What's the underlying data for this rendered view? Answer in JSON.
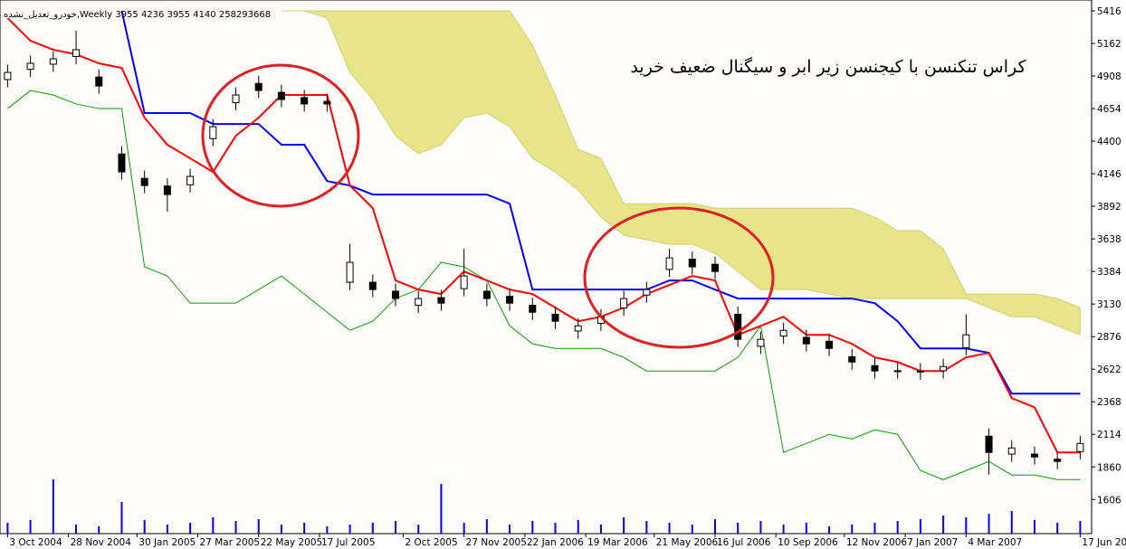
{
  "chart_data": {
    "type": "candlestick",
    "header": "خودرو_تعدیل_نشده,Weekly  3955 4236 3955 4140  258293668",
    "title": "کراس تنکنسن با کیجنسن زیر ابر و سیگنال ضعیف خرید",
    "x": [
      0,
      3,
      6,
      9,
      12,
      15,
      18,
      21,
      24,
      27,
      30,
      33,
      36,
      39,
      42,
      45,
      48,
      51,
      54,
      57,
      60,
      63,
      66,
      69,
      72,
      75,
      78,
      81,
      84,
      87,
      90,
      93,
      96,
      99,
      102,
      105,
      108,
      111,
      114,
      117,
      120,
      123,
      126,
      129,
      132,
      135,
      138,
      141
    ],
    "open": [
      4880,
      4960,
      5000,
      5060,
      4900,
      4300,
      4110,
      4050,
      4060,
      4420,
      4700,
      4850,
      4780,
      4740,
      4710,
      3300,
      3300,
      3230,
      3120,
      3180,
      3250,
      3230,
      3190,
      3120,
      3050,
      2920,
      2980,
      3100,
      3200,
      3400,
      3480,
      3440,
      3050,
      2800,
      2880,
      2870,
      2840,
      2720,
      2650,
      2610,
      2600,
      2610,
      2790,
      2100,
      1960,
      1960,
      1920,
      1980
    ],
    "high": [
      4996,
      5067,
      5102,
      5260,
      4960,
      4360,
      4170,
      4110,
      4185,
      4573,
      4820,
      4910,
      4840,
      4800,
      4770,
      3600,
      3360,
      3290,
      3233,
      3240,
      3560,
      3290,
      3250,
      3180,
      3110,
      3020,
      3091,
      3233,
      3303,
      3560,
      3540,
      3500,
      3110,
      2915,
      2985,
      2930,
      2900,
      2780,
      2710,
      2670,
      2668,
      2703,
      3050,
      2160,
      2068,
      2020,
      1980,
      2103
    ],
    "low": [
      4820,
      4900,
      4940,
      5000,
      4770,
      4100,
      3994,
      3850,
      4000,
      4360,
      4640,
      4735,
      4665,
      4630,
      4630,
      3240,
      3183,
      3113,
      3060,
      3077,
      3190,
      3113,
      3077,
      3006,
      2936,
      2860,
      2920,
      3040,
      3140,
      3340,
      3360,
      3324,
      2795,
      2740,
      2820,
      2760,
      2724,
      2618,
      2548,
      2548,
      2540,
      2550,
      2730,
      1800,
      1900,
      1878,
      1843,
      1920
    ],
    "close": [
      4936,
      5007,
      5042,
      5113,
      4830,
      4160,
      4054,
      3984,
      4125,
      4513,
      4760,
      4795,
      4725,
      4690,
      4690,
      3455,
      3243,
      3173,
      3173,
      3137,
      3349,
      3173,
      3137,
      3066,
      2996,
      2960,
      3031,
      3173,
      3243,
      3490,
      3420,
      3384,
      2855,
      2855,
      2925,
      2820,
      2784,
      2678,
      2608,
      2608,
      2608,
      2643,
      2890,
      1973,
      2008,
      1938,
      1903,
      2043
    ],
    "cloud": {
      "color": "#e8e48c",
      "edge": "#c9d66c",
      "upper": [
        null,
        null,
        null,
        null,
        null,
        null,
        null,
        null,
        null,
        null,
        null,
        null,
        5416,
        5416,
        5416,
        5416,
        5416,
        5416,
        5416,
        5416,
        5416,
        5416,
        5416,
        5148,
        4760,
        4336,
        4266,
        3913,
        3913,
        3913,
        3913,
        3878,
        3878,
        3878,
        3878,
        3878,
        3878,
        3878,
        3808,
        3702,
        3702,
        3561,
        3208,
        3208,
        3208,
        3208,
        3173,
        3102
      ],
      "lower": [
        null,
        null,
        null,
        null,
        null,
        null,
        null,
        null,
        null,
        null,
        null,
        null,
        5416,
        5416,
        5360,
        4936,
        4725,
        4442,
        4301,
        4372,
        4583,
        4619,
        4513,
        4266,
        4160,
        4019,
        3808,
        3667,
        3631,
        3596,
        3596,
        3526,
        3384,
        3243,
        3243,
        3243,
        3208,
        3173,
        3173,
        3173,
        3173,
        3173,
        3173,
        3102,
        3031,
        3031,
        2960,
        2890
      ]
    },
    "lines": [
      {
        "color": "#00a000",
        "width": 1,
        "values": [
          4654,
          4795,
          4760,
          4690,
          4654,
          4654,
          3420,
          3349,
          3137,
          3137,
          3137,
          3243,
          3349,
          3208,
          3066,
          2925,
          2996,
          3173,
          3243,
          3455,
          3420,
          3314,
          2960,
          2820,
          2784,
          2784,
          2784,
          2714,
          2608,
          2608,
          2608,
          2608,
          2714,
          2960,
          1973,
          2043,
          2114,
          2078,
          2149,
          2114,
          1832,
          1761,
          1832,
          1903,
          1797,
          1797,
          1761,
          1761
        ]
      },
      {
        "color": "#0000ff",
        "width": 2,
        "values": [
          null,
          null,
          null,
          null,
          null,
          5416,
          4619,
          4619,
          4619,
          4534,
          4534,
          4534,
          4372,
          4372,
          4089,
          4054,
          3984,
          3984,
          3984,
          3984,
          3984,
          3984,
          3913,
          3243,
          3243,
          3243,
          3243,
          3243,
          3243,
          3314,
          3314,
          3243,
          3173,
          3173,
          3173,
          3173,
          3173,
          3173,
          3137,
          2996,
          2784,
          2784,
          2784,
          2749,
          2431,
          2431,
          2431,
          2431
        ]
      },
      {
        "color": "#ff0000",
        "width": 2,
        "values": [
          5360,
          5183,
          5113,
          5077,
          5007,
          4971,
          4583,
          4372,
          4266,
          4160,
          4442,
          4583,
          4760,
          4760,
          4760,
          4054,
          3878,
          3314,
          3243,
          3208,
          3384,
          3314,
          3243,
          3208,
          3102,
          2996,
          3031,
          3102,
          3208,
          3279,
          3349,
          3314,
          2890,
          2960,
          3031,
          2890,
          2890,
          2820,
          2714,
          2678,
          2608,
          2608,
          2714,
          2749,
          2396,
          2325,
          1973,
          1973
        ]
      }
    ],
    "volume": {
      "color": "#0000ff",
      "values": [
        12,
        15,
        60,
        10,
        8,
        35,
        15,
        10,
        12,
        18,
        14,
        16,
        10,
        12,
        8,
        10,
        12,
        14,
        10,
        55,
        12,
        16,
        10,
        14,
        12,
        15,
        10,
        18,
        14,
        12,
        10,
        16,
        12,
        14,
        10,
        12,
        8,
        10,
        12,
        14,
        16,
        20,
        18,
        22,
        25,
        15,
        12,
        14
      ]
    },
    "xlim": [
      -1,
      142.5
    ],
    "ylim": [
      1340,
      5416
    ],
    "yticks": [
      5416,
      5162,
      4908,
      4654,
      4400,
      4146,
      3892,
      3638,
      3384,
      3130,
      2876,
      2622,
      2368,
      2114,
      1860,
      1606
    ],
    "xticks": [
      {
        "value": 0,
        "label": "3 Oct 2004"
      },
      {
        "value": 8,
        "label": "28 Nov 2004"
      },
      {
        "value": 17,
        "label": "30 Jan 2005"
      },
      {
        "value": 25,
        "label": "27 Mar 2005"
      },
      {
        "value": 33,
        "label": "22 May 2005"
      },
      {
        "value": 41,
        "label": "17 Jul 2005"
      },
      {
        "value": 52,
        "label": "2 Oct 2005"
      },
      {
        "value": 60,
        "label": "27 Nov 2005"
      },
      {
        "value": 68,
        "label": "22 Jan 2006"
      },
      {
        "value": 76,
        "label": "19 Mar 2006"
      },
      {
        "value": 85,
        "label": "21 May 2006"
      },
      {
        "value": 93,
        "label": "16 Jul 2006"
      },
      {
        "value": 101,
        "label": "10 Sep 2006"
      },
      {
        "value": 110,
        "label": "12 Nov 2006"
      },
      {
        "value": 118,
        "label": "7 Jan 2007"
      },
      {
        "value": 126,
        "label": "4 Mar 2007"
      },
      {
        "value": 141,
        "label": "17 Jun 2007"
      }
    ]
  }
}
